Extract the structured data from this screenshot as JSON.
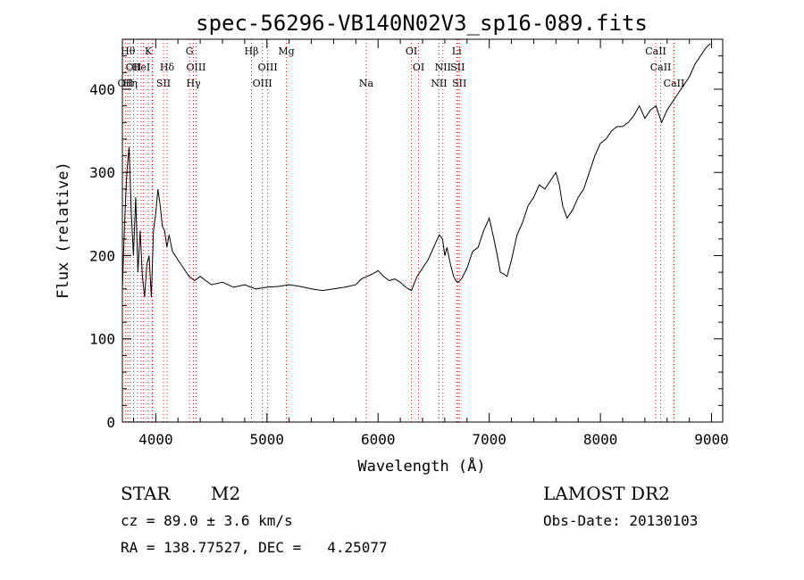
{
  "chart_data": {
    "type": "line",
    "title": "spec-56296-VB140N02V3_sp16-089.fits",
    "xlabel": "Wavelength (Å)",
    "ylabel": "Flux (relative)",
    "xlim": [
      3700,
      9100
    ],
    "ylim": [
      0,
      460
    ],
    "x_ticks": [
      4000,
      5000,
      6000,
      7000,
      8000,
      9000
    ],
    "y_ticks": [
      0,
      100,
      200,
      300,
      400
    ],
    "grid": false,
    "line_color": "#000000",
    "marker_color": "#ff0000",
    "series": [
      {
        "x": [
          3700,
          3720,
          3740,
          3760,
          3780,
          3800,
          3820,
          3840,
          3860,
          3880,
          3900,
          3920,
          3940,
          3960,
          3980,
          4000,
          4020,
          4040,
          4060,
          4080,
          4100,
          4120,
          4150,
          4200,
          4250,
          4300,
          4350,
          4400,
          4450,
          4500,
          4600,
          4700,
          4800,
          4900,
          5000,
          5100,
          5200,
          5300,
          5400,
          5500,
          5600,
          5700,
          5800,
          5850,
          5900,
          5950,
          6000,
          6050,
          6100,
          6150,
          6200,
          6250,
          6300,
          6350,
          6400,
          6450,
          6500,
          6550,
          6580,
          6600,
          6620,
          6650,
          6680,
          6700,
          6720,
          6750,
          6800,
          6850,
          6900,
          6950,
          7000,
          7050,
          7080,
          7100,
          7130,
          7160,
          7200,
          7250,
          7300,
          7350,
          7400,
          7450,
          7500,
          7550,
          7600,
          7630,
          7660,
          7700,
          7750,
          7800,
          7850,
          7900,
          7950,
          8000,
          8050,
          8100,
          8150,
          8200,
          8250,
          8300,
          8350,
          8400,
          8450,
          8500,
          8550,
          8600,
          8650,
          8700,
          8750,
          8800,
          8850,
          8900,
          8950,
          8990
        ],
        "y": [
          160,
          240,
          300,
          330,
          250,
          200,
          270,
          180,
          230,
          175,
          150,
          190,
          200,
          150,
          230,
          250,
          280,
          260,
          235,
          230,
          210,
          225,
          205,
          195,
          185,
          175,
          170,
          175,
          170,
          165,
          168,
          162,
          165,
          160,
          162,
          163,
          165,
          163,
          160,
          158,
          160,
          162,
          165,
          172,
          175,
          178,
          182,
          175,
          170,
          172,
          168,
          162,
          158,
          175,
          185,
          195,
          210,
          225,
          220,
          200,
          210,
          190,
          175,
          170,
          168,
          172,
          185,
          205,
          210,
          230,
          245,
          215,
          195,
          180,
          178,
          175,
          195,
          225,
          240,
          260,
          270,
          285,
          280,
          290,
          300,
          285,
          260,
          245,
          255,
          270,
          280,
          300,
          320,
          335,
          340,
          350,
          355,
          355,
          360,
          368,
          380,
          365,
          375,
          380,
          360,
          375,
          385,
          395,
          405,
          415,
          430,
          440,
          450,
          455
        ]
      }
    ],
    "line_markers": [
      {
        "x": 3727,
        "label": "OII",
        "row": 2
      },
      {
        "x": 3750,
        "label": "Hθ",
        "row": 0
      },
      {
        "x": 3770,
        "label": "Hη",
        "row": 2
      },
      {
        "x": 3800,
        "label": "OII",
        "row": 1
      },
      {
        "x": 3835,
        "label": "",
        "row": 0
      },
      {
        "x": 3869,
        "label": "HeI",
        "row": 1
      },
      {
        "x": 3890,
        "label": "",
        "row": 0
      },
      {
        "x": 3934,
        "label": "K",
        "row": 0
      },
      {
        "x": 3969,
        "label": "",
        "row": 0
      },
      {
        "x": 4070,
        "label": "SII",
        "row": 2
      },
      {
        "x": 4102,
        "label": "Hδ",
        "row": 1
      },
      {
        "x": 4304,
        "label": "G",
        "row": 0
      },
      {
        "x": 4340,
        "label": "Hγ",
        "row": 2
      },
      {
        "x": 4363,
        "label": "OIII",
        "row": 1
      },
      {
        "x": 4861,
        "label": "Hβ",
        "row": 0
      },
      {
        "x": 4959,
        "label": "OIII",
        "row": 2
      },
      {
        "x": 5007,
        "label": "OIII",
        "row": 1
      },
      {
        "x": 5175,
        "label": "Mg",
        "row": 0
      },
      {
        "x": 5893,
        "label": "Na",
        "row": 2
      },
      {
        "x": 6300,
        "label": "OI",
        "row": 0
      },
      {
        "x": 6364,
        "label": "OI",
        "row": 1
      },
      {
        "x": 6548,
        "label": "NII",
        "row": 2
      },
      {
        "x": 6583,
        "label": "NII",
        "row": 1
      },
      {
        "x": 6707,
        "label": "Li",
        "row": 0
      },
      {
        "x": 6716,
        "label": "SII",
        "row": 1
      },
      {
        "x": 6731,
        "label": "SII",
        "row": 2
      },
      {
        "x": 8498,
        "label": "CaII",
        "row": 0
      },
      {
        "x": 8542,
        "label": "CaII",
        "row": 1
      },
      {
        "x": 8662,
        "label": "CaII",
        "row": 2
      }
    ]
  },
  "footer": {
    "object_type": "STAR",
    "subclass": "M2",
    "survey": "LAMOST DR2",
    "redshift": "cz = 89.0 ± 3.6 km/s",
    "obs_date": "Obs-Date: 20130103",
    "coords": "RA = 138.77527, DEC =   4.25077"
  }
}
